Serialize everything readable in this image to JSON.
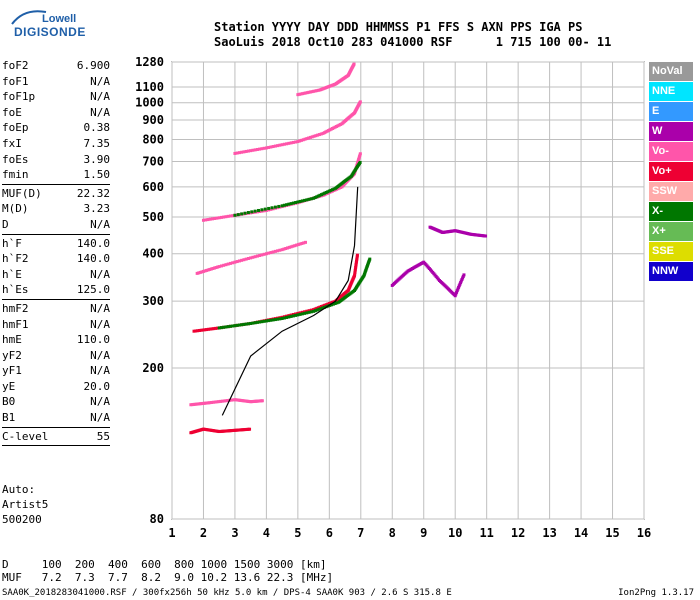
{
  "logo": {
    "line1": "Lowell",
    "line2": "DIGISONDE"
  },
  "header": {
    "labels": [
      "Station",
      "YYYY",
      "DAY",
      "DDD",
      "HHMMSS",
      "P1",
      "FFS",
      "S",
      "AXN",
      "PPS",
      "IGA",
      "PS"
    ],
    "values": [
      "SaoLuis",
      "2018",
      "Oct10",
      "283",
      "041000",
      "RSF",
      "1",
      "715",
      "100",
      "00-",
      "11"
    ]
  },
  "params_group1": [
    {
      "name": "foF2",
      "value": "6.900"
    },
    {
      "name": "foF1",
      "value": "N/A"
    },
    {
      "name": "foF1p",
      "value": "N/A"
    },
    {
      "name": "foE",
      "value": "N/A"
    },
    {
      "name": "foEp",
      "value": "0.38"
    },
    {
      "name": "fxI",
      "value": "7.35"
    },
    {
      "name": "foEs",
      "value": "3.90"
    },
    {
      "name": "fmin",
      "value": "1.50"
    }
  ],
  "params_group2": [
    {
      "name": "MUF(D)",
      "value": "22.32"
    },
    {
      "name": "M(D)",
      "value": "3.23"
    },
    {
      "name": "D",
      "value": "N/A"
    }
  ],
  "params_group3": [
    {
      "name": "h`F",
      "value": "140.0"
    },
    {
      "name": "h`F2",
      "value": "140.0"
    },
    {
      "name": "h`E",
      "value": "N/A"
    },
    {
      "name": "h`Es",
      "value": "125.0"
    }
  ],
  "params_group4": [
    {
      "name": "hmF2",
      "value": "N/A"
    },
    {
      "name": "hmF1",
      "value": "N/A"
    },
    {
      "name": "hmE",
      "value": "110.0"
    },
    {
      "name": "yF2",
      "value": "N/A"
    },
    {
      "name": "yF1",
      "value": "N/A"
    },
    {
      "name": "yE",
      "value": "20.0"
    },
    {
      "name": "B0",
      "value": "N/A"
    },
    {
      "name": "B1",
      "value": "N/A"
    }
  ],
  "params_group5": [
    {
      "name": "C-level",
      "value": "55"
    }
  ],
  "auto": {
    "line1": "Auto:",
    "line2": "Artist5",
    "line3": "500200"
  },
  "legend": [
    {
      "label": "NoVal",
      "color": "#999999"
    },
    {
      "label": "NNE",
      "color": "#00e5ff"
    },
    {
      "label": "E",
      "color": "#3399ff"
    },
    {
      "label": "W",
      "color": "#aa00aa"
    },
    {
      "label": "Vo-",
      "color": "#ff55aa"
    },
    {
      "label": "Vo+",
      "color": "#ee0033"
    },
    {
      "label": "SSW",
      "color": "#ffaaaa"
    },
    {
      "label": "X-",
      "color": "#007700"
    },
    {
      "label": "X+",
      "color": "#66bb55"
    },
    {
      "label": "SSE",
      "color": "#dddd00"
    },
    {
      "label": "NNW",
      "color": "#1100cc"
    }
  ],
  "dmuf": {
    "d_label": "D",
    "d_values": [
      "100",
      "200",
      "400",
      "600",
      "800",
      "1000",
      "1500",
      "3000"
    ],
    "d_unit": "[km]",
    "muf_label": "MUF",
    "muf_values": [
      "7.2",
      "7.3",
      "7.7",
      "8.2",
      "9.0",
      "10.2",
      "13.6",
      "22.3"
    ],
    "muf_unit": "[MHz]"
  },
  "footer": "SAA0K_2018283041000.RSF / 300fx256h 50 kHz 5.0 km / DPS-4 SAA0K 903 / 2.6 S 315.8 E",
  "version": "Ion2Png 1.3.17",
  "chart_data": {
    "type": "scatter",
    "xlim": [
      1,
      16
    ],
    "ylim": [
      80,
      1280
    ],
    "x_ticks": [
      1,
      2,
      3,
      4,
      5,
      6,
      7,
      8,
      9,
      10,
      11,
      12,
      13,
      14,
      15,
      16
    ],
    "y_ticks": [
      80,
      200,
      300,
      400,
      500,
      600,
      700,
      800,
      900,
      1000,
      1100,
      1280
    ],
    "y_scale": "log",
    "grid": true,
    "traces": [
      {
        "name": "Vo- F2 1st hop",
        "color": "#ee0033",
        "x": [
          1.7,
          2.5,
          3.5,
          4.5,
          5.5,
          6.2,
          6.6,
          6.8,
          6.9
        ],
        "y": [
          250,
          255,
          262,
          272,
          285,
          300,
          320,
          350,
          400
        ]
      },
      {
        "name": "X- F2 1st hop",
        "color": "#007700",
        "x": [
          2.5,
          3.5,
          4.5,
          5.5,
          6.3,
          6.8,
          7.1,
          7.3
        ],
        "y": [
          255,
          262,
          270,
          282,
          298,
          320,
          350,
          390
        ]
      },
      {
        "name": "Vo- 2nd hop",
        "color": "#ff55aa",
        "x": [
          2.0,
          3.0,
          4.0,
          5.0,
          5.8,
          6.4,
          6.8,
          7.0
        ],
        "y": [
          490,
          505,
          520,
          545,
          570,
          600,
          650,
          740
        ]
      },
      {
        "name": "Vo- 3rd hop",
        "color": "#ff55aa",
        "x": [
          3.0,
          4.0,
          5.0,
          5.8,
          6.4,
          6.8,
          7.0
        ],
        "y": [
          735,
          760,
          790,
          830,
          880,
          940,
          1010
        ]
      },
      {
        "name": "Vo- 4th hop",
        "color": "#ff55aa",
        "x": [
          5.0,
          5.7,
          6.2,
          6.6,
          6.8
        ],
        "y": [
          1050,
          1080,
          1120,
          1180,
          1270
        ]
      },
      {
        "name": "X- 2nd hop",
        "color": "#007700",
        "x": [
          3.0,
          4.5,
          5.5,
          6.2,
          6.7,
          7.0
        ],
        "y": [
          505,
          535,
          560,
          595,
          640,
          700
        ]
      },
      {
        "name": "Vo- Es",
        "color": "#ee0033",
        "x": [
          1.6,
          2.0,
          2.5,
          3.0,
          3.5
        ],
        "y": [
          135,
          138,
          136,
          137,
          138
        ]
      },
      {
        "name": "Vo- Es upper",
        "color": "#ff55aa",
        "x": [
          1.6,
          2.2,
          3.0,
          3.5,
          3.9
        ],
        "y": [
          160,
          162,
          165,
          163,
          164
        ]
      },
      {
        "name": "Vo- 2F/Es",
        "color": "#ff55aa",
        "x": [
          1.8,
          2.5,
          3.5,
          4.5,
          5.3
        ],
        "y": [
          355,
          370,
          390,
          410,
          430
        ]
      },
      {
        "name": "W patch",
        "color": "#aa00aa",
        "x": [
          9.2,
          9.6,
          10.0,
          10.5,
          11.0
        ],
        "y": [
          470,
          455,
          460,
          450,
          445
        ]
      },
      {
        "name": "W patch lower",
        "color": "#aa00aa",
        "x": [
          8.0,
          8.5,
          9.0,
          9.5,
          10.0,
          10.3
        ],
        "y": [
          330,
          360,
          380,
          340,
          310,
          355
        ]
      }
    ],
    "profile_line": {
      "color": "#000000",
      "x": [
        2.6,
        3.5,
        4.5,
        5.5,
        6.2,
        6.6,
        6.8,
        6.9
      ],
      "y": [
        150,
        215,
        250,
        275,
        300,
        340,
        420,
        600
      ]
    }
  }
}
